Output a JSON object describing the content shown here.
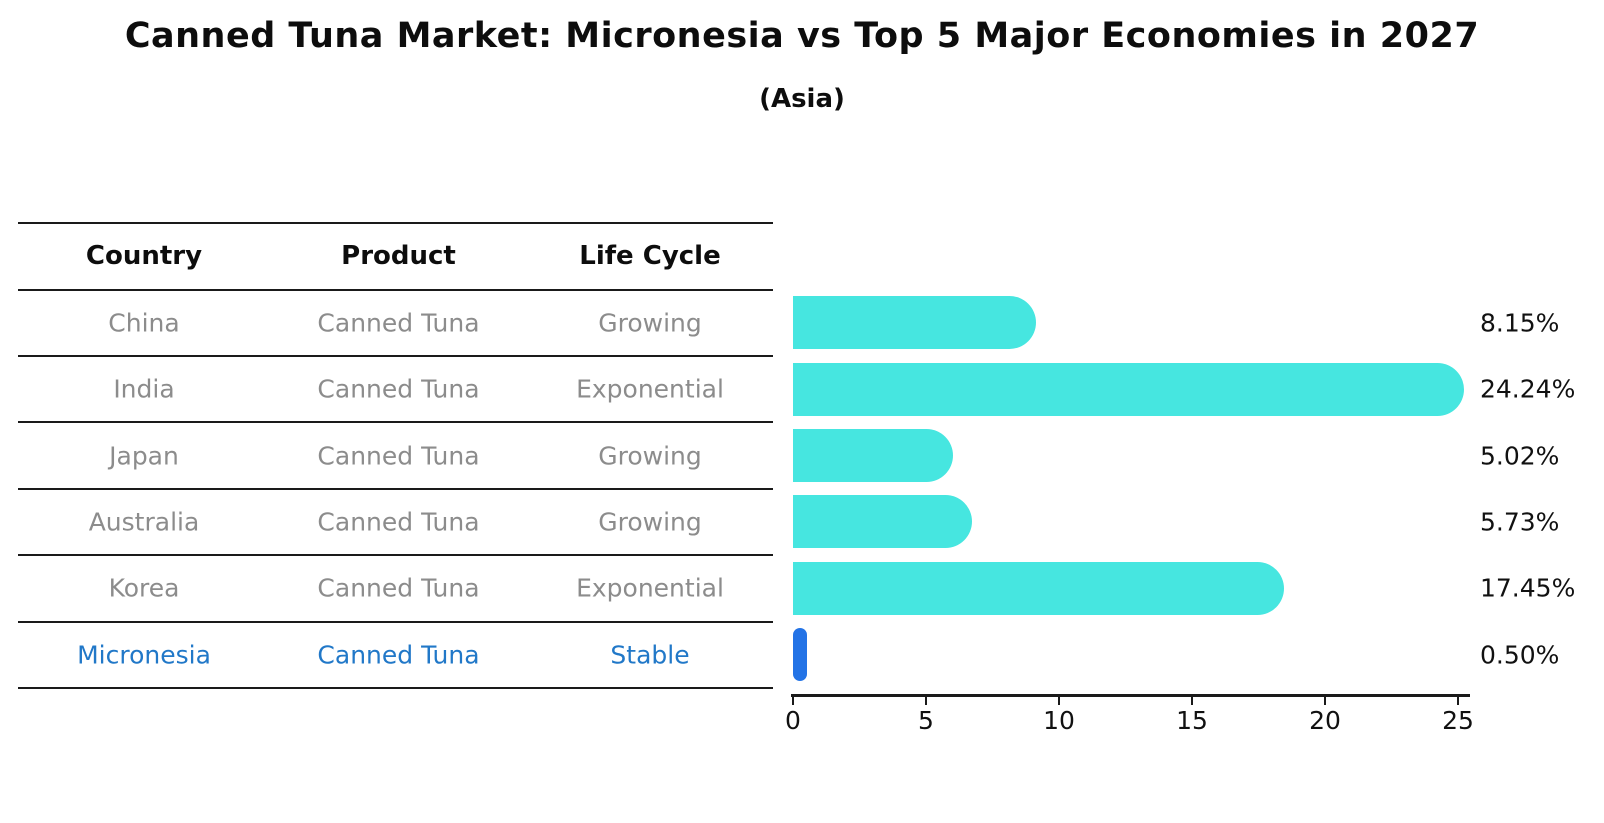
{
  "title": "Canned Tuna Market: Micronesia vs Top 5 Major Economies in 2027",
  "subtitle": "(Asia)",
  "table": {
    "headers": [
      "Country",
      "Product",
      "Life Cycle"
    ],
    "rows": [
      {
        "country": "China",
        "product": "Canned Tuna",
        "life_cycle": "Growing",
        "highlight": false
      },
      {
        "country": "India",
        "product": "Canned Tuna",
        "life_cycle": "Exponential",
        "highlight": false
      },
      {
        "country": "Japan",
        "product": "Canned Tuna",
        "life_cycle": "Growing",
        "highlight": false
      },
      {
        "country": "Australia",
        "product": "Canned Tuna",
        "life_cycle": "Growing",
        "highlight": false
      },
      {
        "country": "Korea",
        "product": "Canned Tuna",
        "life_cycle": "Exponential",
        "highlight": false
      },
      {
        "country": "Micronesia",
        "product": "Canned Tuna",
        "life_cycle": "Stable",
        "highlight": true
      }
    ]
  },
  "chart_data": {
    "type": "bar",
    "orientation": "horizontal",
    "title": "Canned Tuna Market: Micronesia vs Top 5 Major Economies in 2027 (Asia)",
    "categories": [
      "China",
      "India",
      "Japan",
      "Australia",
      "Korea",
      "Micronesia"
    ],
    "values": [
      8.15,
      24.24,
      5.02,
      5.73,
      17.45,
      0.5
    ],
    "value_labels": [
      "8.15%",
      "24.24%",
      "5.02%",
      "5.73%",
      "17.45%",
      "0.50%"
    ],
    "xlabel": "",
    "ylabel": "",
    "xlim": [
      0,
      25.5
    ],
    "xticks": [
      0,
      5,
      10,
      15,
      20,
      25
    ],
    "grid": false,
    "legend": false,
    "bar_color": "#46e6e0",
    "highlight_color": "#2373e6",
    "highlight_index": 5
  },
  "colors": {
    "bar": "#46e6e0",
    "highlight_bar": "#2373e6",
    "highlight_text": "#2178c8",
    "table_text": "#8c8c8c",
    "header_text": "#0d0d0d",
    "line": "#1a1a1a"
  }
}
